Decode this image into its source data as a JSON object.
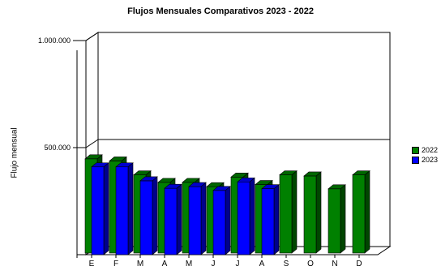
{
  "chart_data": {
    "type": "bar",
    "title": "Flujos Mensuales Comparativos 2023 - 2022",
    "ylabel": "Flujo mensual",
    "xlabel": "",
    "categories": [
      "E",
      "F",
      "M",
      "A",
      "M",
      "J",
      "J",
      "A",
      "S",
      "O",
      "N",
      "D"
    ],
    "y_ticks": [
      {
        "value": 1000000,
        "label": "1.000.000"
      },
      {
        "value": 500000,
        "label": "500.000"
      }
    ],
    "ylim": [
      0,
      1000000
    ],
    "grid": true,
    "legend_position": "right",
    "series": [
      {
        "name": "2022",
        "color": "#008000",
        "values": [
          440000,
          430000,
          365000,
          330000,
          330000,
          310000,
          355000,
          320000,
          365000,
          360000,
          300000,
          365000
        ]
      },
      {
        "name": "2023",
        "color": "#0000ff",
        "values": [
          410000,
          410000,
          345000,
          310000,
          318000,
          300000,
          340000,
          308000,
          null,
          null,
          null,
          null
        ]
      }
    ]
  }
}
